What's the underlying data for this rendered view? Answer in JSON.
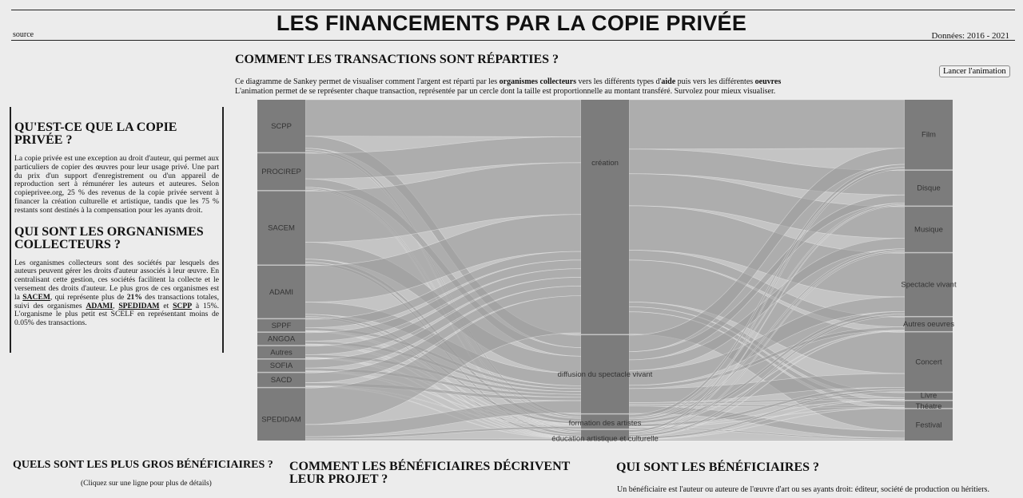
{
  "header": {
    "title": "LES FINANCEMENTS PAR LA COPIE PRIVÉE",
    "source_label": "source",
    "data_years": "Données: 2016 - 2021"
  },
  "sankey_section": {
    "heading": "COMMENT LES TRANSACTIONS SONT RÉPARTIES ?",
    "desc_line1_a": "Ce diagramme de Sankey permet de visualiser comment l'argent est réparti par les ",
    "desc_line1_b": "organismes collecteurs",
    "desc_line1_c": " vers les différents types d'",
    "desc_line1_d": "aide",
    "desc_line1_e": " puis vers les différentes ",
    "desc_line1_f": "oeuvres",
    "desc_line2": "L'animation permet de se représenter chaque transaction, représentée par un cercle dont la taille est proportionnelle au montant transféré. Survolez pour mieux visualiser.",
    "animate_button": "Lancer l'animation"
  },
  "info_panel": {
    "h1": "QU'EST-CE QUE LA COPIE PRIVÉE ?",
    "p1": "La copie privée est une exception au droit d'auteur, qui permet aux particuliers de copier des œuvres pour leur usage privé. Une part du prix d'un support d'enregistrement ou d'un appareil de reproduction sert à rémunérer les auteurs et auteures. Selon copieprivee.org, 25 % des revenus de la copie privée servent à financer la création culturelle et artistique, tandis que les 75 % restants sont destinés à la compensation pour les ayants droit.",
    "h2": "QUI SONT LES ORGNANISMES COLLECTEURS ?",
    "p2_a": "Les organismes collecteurs sont des sociétés par lesquels des auteurs peuvent gérer les droits d'auteur associés à leur œuvre. En centralisant cette gestion, ces sociétés facilitent la collecte et le versement des droits d'auteur. Le plus gros de ces organismes est la ",
    "p2_sacem": "SACEM",
    "p2_b": ", qui représente plus de ",
    "p2_pct": "21%",
    "p2_c": " des transactions totales, suivi des organismes ",
    "p2_adami": "ADAMI",
    "p2_d": ", ",
    "p2_spedidam": "SPEDIDAM",
    "p2_e": " et ",
    "p2_scpp": "SCPP",
    "p2_f": " à 15%. L'organisme le plus petit est SCELF en représentant moins de 0.05% des transactions."
  },
  "bottom": {
    "beneficiaries_heading": "QUELS SONT LES PLUS GROS BÉNÉFICIAIRES ?",
    "beneficiaries_sub": "(Cliquez sur une ligne pour plus de détails)",
    "describe_heading": "COMMENT LES BÉNÉFICIAIRES DÉCRIVENT LEUR PROJET ?",
    "who_heading": "QUI SONT LES BÉNÉFICIAIRES ?",
    "who_text": "Un bénéficiaire est l'auteur ou auteure de l'œuvre d'art ou ses ayants droit: éditeur, société de production ou héritiers."
  },
  "colors": {
    "node": "#7c7c7c",
    "link": "#9b9b9b",
    "chart_bg": "#c4c4c4"
  },
  "chart_data": {
    "type": "sankey",
    "columns": [
      {
        "name": "organismes collecteurs",
        "nodes": [
          {
            "label": "SCPP",
            "value": 15
          },
          {
            "label": "PROCIREP",
            "value": 10.5
          },
          {
            "label": "SACEM",
            "value": 21
          },
          {
            "label": "ADAMI",
            "value": 15
          },
          {
            "label": "SPPF",
            "value": 3.5
          },
          {
            "label": "ANGOA",
            "value": 3.5
          },
          {
            "label": "Autres",
            "value": 3.5
          },
          {
            "label": "SOFIA",
            "value": 3.5
          },
          {
            "label": "SACD",
            "value": 4
          },
          {
            "label": "SPEDIDAM",
            "value": 15
          }
        ]
      },
      {
        "name": "aide",
        "nodes": [
          {
            "label": "création",
            "value": 66
          },
          {
            "label": "diffusion du spectacle vivant",
            "value": 22
          },
          {
            "label": "formation des artistes",
            "value": 4
          },
          {
            "label": "éducation artistique et culturelle",
            "value": 3
          }
        ]
      },
      {
        "name": "oeuvres",
        "nodes": [
          {
            "label": "Film",
            "value": 20
          },
          {
            "label": "Disque",
            "value": 10
          },
          {
            "label": "Musique",
            "value": 13
          },
          {
            "label": "Spectacle vivant",
            "value": 18
          },
          {
            "label": "Autres oeuvres",
            "value": 4
          },
          {
            "label": "Concert",
            "value": 17
          },
          {
            "label": "Livre",
            "value": 2
          },
          {
            "label": "Théatre",
            "value": 2
          },
          {
            "label": "Festival",
            "value": 9
          }
        ]
      }
    ]
  }
}
